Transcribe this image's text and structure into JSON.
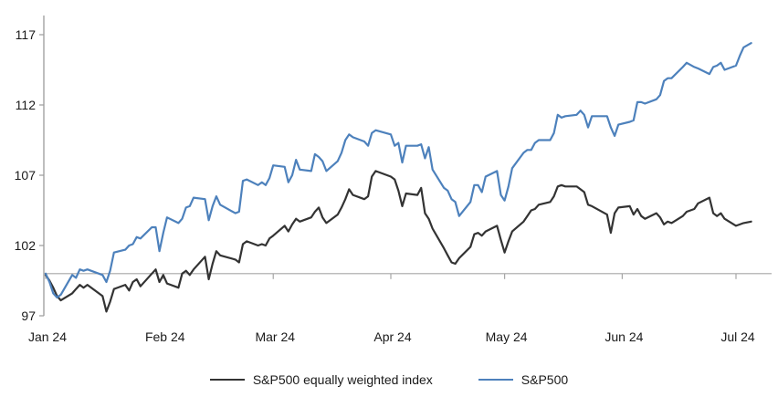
{
  "chart_data": {
    "type": "line",
    "title": "",
    "xlabel": "",
    "ylabel": "",
    "grid": "off",
    "legend_position": "bottom",
    "x_axis": {
      "tick_labels": [
        "Jan 24",
        "Feb 24",
        "Mar 24",
        "Apr 24",
        "May 24",
        "Jun 24",
        "Jul 24"
      ],
      "tick_days": [
        0,
        31,
        60,
        91,
        121,
        152,
        182
      ],
      "unit": "days since Jan 1 2024"
    },
    "y_axis": {
      "ticks": [
        97,
        102,
        107,
        112,
        117
      ],
      "min": 97,
      "max": 118.4,
      "baseline": 100
    },
    "axis_color": "#9b9b9b",
    "series": [
      {
        "name": "S&P500 equally weighted index",
        "color": "#333333",
        "points": [
          [
            0,
            99.9
          ],
          [
            1,
            99.5
          ],
          [
            2,
            99.0
          ],
          [
            3,
            98.4
          ],
          [
            4,
            98.1
          ],
          [
            7,
            98.6
          ],
          [
            8,
            98.9
          ],
          [
            9,
            99.2
          ],
          [
            10,
            99.0
          ],
          [
            11,
            99.2
          ],
          [
            15,
            98.4
          ],
          [
            16,
            97.3
          ],
          [
            17,
            98.0
          ],
          [
            18,
            98.9
          ],
          [
            21,
            99.2
          ],
          [
            22,
            98.8
          ],
          [
            23,
            99.4
          ],
          [
            24,
            99.6
          ],
          [
            25,
            99.1
          ],
          [
            28,
            100.0
          ],
          [
            29,
            100.3
          ],
          [
            30,
            99.4
          ],
          [
            31,
            99.9
          ],
          [
            32,
            99.3
          ],
          [
            35,
            99.0
          ],
          [
            36,
            100.0
          ],
          [
            37,
            100.2
          ],
          [
            38,
            99.9
          ],
          [
            39,
            100.3
          ],
          [
            42,
            101.2
          ],
          [
            43,
            99.6
          ],
          [
            44,
            100.7
          ],
          [
            45,
            101.6
          ],
          [
            46,
            101.3
          ],
          [
            50,
            101.0
          ],
          [
            51,
            100.8
          ],
          [
            52,
            102.1
          ],
          [
            53,
            102.3
          ],
          [
            56,
            102.0
          ],
          [
            57,
            102.1
          ],
          [
            58,
            102.0
          ],
          [
            59,
            102.5
          ],
          [
            60,
            102.7
          ],
          [
            63,
            103.4
          ],
          [
            64,
            103.0
          ],
          [
            65,
            103.5
          ],
          [
            66,
            103.9
          ],
          [
            67,
            103.7
          ],
          [
            70,
            104.0
          ],
          [
            71,
            104.4
          ],
          [
            72,
            104.7
          ],
          [
            73,
            104.0
          ],
          [
            74,
            103.6
          ],
          [
            77,
            104.2
          ],
          [
            78,
            104.7
          ],
          [
            79,
            105.3
          ],
          [
            80,
            106.0
          ],
          [
            81,
            105.6
          ],
          [
            84,
            105.3
          ],
          [
            85,
            105.5
          ],
          [
            86,
            106.9
          ],
          [
            87,
            107.3
          ],
          [
            91,
            106.9
          ],
          [
            92,
            106.7
          ],
          [
            93,
            105.9
          ],
          [
            94,
            104.8
          ],
          [
            95,
            105.7
          ],
          [
            98,
            105.6
          ],
          [
            99,
            106.1
          ],
          [
            100,
            104.3
          ],
          [
            101,
            103.9
          ],
          [
            102,
            103.2
          ],
          [
            105,
            101.8
          ],
          [
            106,
            101.3
          ],
          [
            107,
            100.8
          ],
          [
            108,
            100.7
          ],
          [
            109,
            101.1
          ],
          [
            112,
            101.9
          ],
          [
            113,
            102.8
          ],
          [
            114,
            102.9
          ],
          [
            115,
            102.7
          ],
          [
            116,
            103.0
          ],
          [
            119,
            103.4
          ],
          [
            120,
            102.4
          ],
          [
            121,
            101.5
          ],
          [
            122,
            102.3
          ],
          [
            123,
            103.0
          ],
          [
            126,
            103.7
          ],
          [
            127,
            104.1
          ],
          [
            128,
            104.5
          ],
          [
            129,
            104.6
          ],
          [
            130,
            104.9
          ],
          [
            133,
            105.1
          ],
          [
            134,
            105.5
          ],
          [
            135,
            106.2
          ],
          [
            136,
            106.3
          ],
          [
            137,
            106.2
          ],
          [
            140,
            106.2
          ],
          [
            141,
            106.0
          ],
          [
            142,
            105.8
          ],
          [
            143,
            104.9
          ],
          [
            144,
            104.8
          ],
          [
            148,
            104.2
          ],
          [
            149,
            102.9
          ],
          [
            150,
            104.3
          ],
          [
            151,
            104.7
          ],
          [
            154,
            104.8
          ],
          [
            155,
            104.2
          ],
          [
            156,
            104.6
          ],
          [
            157,
            104.1
          ],
          [
            158,
            103.9
          ],
          [
            161,
            104.3
          ],
          [
            162,
            104.0
          ],
          [
            163,
            103.5
          ],
          [
            164,
            103.7
          ],
          [
            165,
            103.6
          ],
          [
            168,
            104.1
          ],
          [
            169,
            104.4
          ],
          [
            171,
            104.6
          ],
          [
            172,
            105.0
          ],
          [
            175,
            105.4
          ],
          [
            176,
            104.3
          ],
          [
            177,
            104.1
          ],
          [
            178,
            104.3
          ],
          [
            179,
            103.9
          ],
          [
            182,
            103.4
          ],
          [
            183,
            103.5
          ],
          [
            184,
            103.6
          ],
          [
            186,
            103.7
          ]
        ]
      },
      {
        "name": "S&P500",
        "color": "#4d81bc",
        "points": [
          [
            0,
            100.0
          ],
          [
            1,
            99.4
          ],
          [
            2,
            98.6
          ],
          [
            3,
            98.3
          ],
          [
            4,
            98.5
          ],
          [
            7,
            99.9
          ],
          [
            8,
            99.7
          ],
          [
            9,
            100.3
          ],
          [
            10,
            100.2
          ],
          [
            11,
            100.3
          ],
          [
            15,
            99.9
          ],
          [
            16,
            99.4
          ],
          [
            17,
            100.2
          ],
          [
            18,
            101.5
          ],
          [
            21,
            101.7
          ],
          [
            22,
            102.0
          ],
          [
            23,
            102.1
          ],
          [
            24,
            102.6
          ],
          [
            25,
            102.5
          ],
          [
            28,
            103.3
          ],
          [
            29,
            103.3
          ],
          [
            30,
            101.6
          ],
          [
            31,
            102.9
          ],
          [
            32,
            104.0
          ],
          [
            35,
            103.6
          ],
          [
            36,
            103.9
          ],
          [
            37,
            104.7
          ],
          [
            38,
            104.8
          ],
          [
            39,
            105.4
          ],
          [
            42,
            105.3
          ],
          [
            43,
            103.8
          ],
          [
            44,
            104.8
          ],
          [
            45,
            105.5
          ],
          [
            46,
            104.9
          ],
          [
            50,
            104.3
          ],
          [
            51,
            104.4
          ],
          [
            52,
            106.6
          ],
          [
            53,
            106.7
          ],
          [
            56,
            106.3
          ],
          [
            57,
            106.5
          ],
          [
            58,
            106.3
          ],
          [
            59,
            106.8
          ],
          [
            60,
            107.7
          ],
          [
            63,
            107.6
          ],
          [
            64,
            106.5
          ],
          [
            65,
            107.0
          ],
          [
            66,
            108.1
          ],
          [
            67,
            107.4
          ],
          [
            70,
            107.3
          ],
          [
            71,
            108.5
          ],
          [
            72,
            108.3
          ],
          [
            73,
            108.0
          ],
          [
            74,
            107.3
          ],
          [
            77,
            108.0
          ],
          [
            78,
            108.6
          ],
          [
            79,
            109.5
          ],
          [
            80,
            109.9
          ],
          [
            81,
            109.7
          ],
          [
            84,
            109.4
          ],
          [
            85,
            109.1
          ],
          [
            86,
            110.0
          ],
          [
            87,
            110.2
          ],
          [
            91,
            109.9
          ],
          [
            92,
            109.1
          ],
          [
            93,
            109.3
          ],
          [
            94,
            107.9
          ],
          [
            95,
            109.1
          ],
          [
            98,
            109.1
          ],
          [
            99,
            109.2
          ],
          [
            100,
            108.2
          ],
          [
            101,
            109.0
          ],
          [
            102,
            107.4
          ],
          [
            105,
            106.1
          ],
          [
            106,
            105.9
          ],
          [
            107,
            105.3
          ],
          [
            108,
            105.1
          ],
          [
            109,
            104.1
          ],
          [
            112,
            105.1
          ],
          [
            113,
            106.3
          ],
          [
            114,
            106.3
          ],
          [
            115,
            105.8
          ],
          [
            116,
            106.9
          ],
          [
            119,
            107.3
          ],
          [
            120,
            105.6
          ],
          [
            121,
            105.2
          ],
          [
            122,
            106.2
          ],
          [
            123,
            107.5
          ],
          [
            126,
            108.6
          ],
          [
            127,
            108.8
          ],
          [
            128,
            108.8
          ],
          [
            129,
            109.3
          ],
          [
            130,
            109.5
          ],
          [
            133,
            109.5
          ],
          [
            134,
            110.0
          ],
          [
            135,
            111.3
          ],
          [
            136,
            111.1
          ],
          [
            137,
            111.2
          ],
          [
            140,
            111.3
          ],
          [
            141,
            111.6
          ],
          [
            142,
            111.3
          ],
          [
            143,
            110.4
          ],
          [
            144,
            111.2
          ],
          [
            148,
            111.2
          ],
          [
            149,
            110.4
          ],
          [
            150,
            109.8
          ],
          [
            151,
            110.6
          ],
          [
            154,
            110.8
          ],
          [
            155,
            110.9
          ],
          [
            156,
            112.2
          ],
          [
            157,
            112.2
          ],
          [
            158,
            112.1
          ],
          [
            161,
            112.4
          ],
          [
            162,
            112.7
          ],
          [
            163,
            113.7
          ],
          [
            164,
            113.9
          ],
          [
            165,
            113.9
          ],
          [
            168,
            114.7
          ],
          [
            169,
            115.0
          ],
          [
            171,
            114.7
          ],
          [
            172,
            114.6
          ],
          [
            175,
            114.2
          ],
          [
            176,
            114.7
          ],
          [
            177,
            114.8
          ],
          [
            178,
            115.0
          ],
          [
            179,
            114.5
          ],
          [
            182,
            114.8
          ],
          [
            183,
            115.5
          ],
          [
            184,
            116.1
          ],
          [
            186,
            116.4
          ]
        ]
      }
    ]
  },
  "legend": {
    "items": [
      {
        "label": "S&P500 equally weighted index"
      },
      {
        "label": "S&P500"
      }
    ]
  }
}
